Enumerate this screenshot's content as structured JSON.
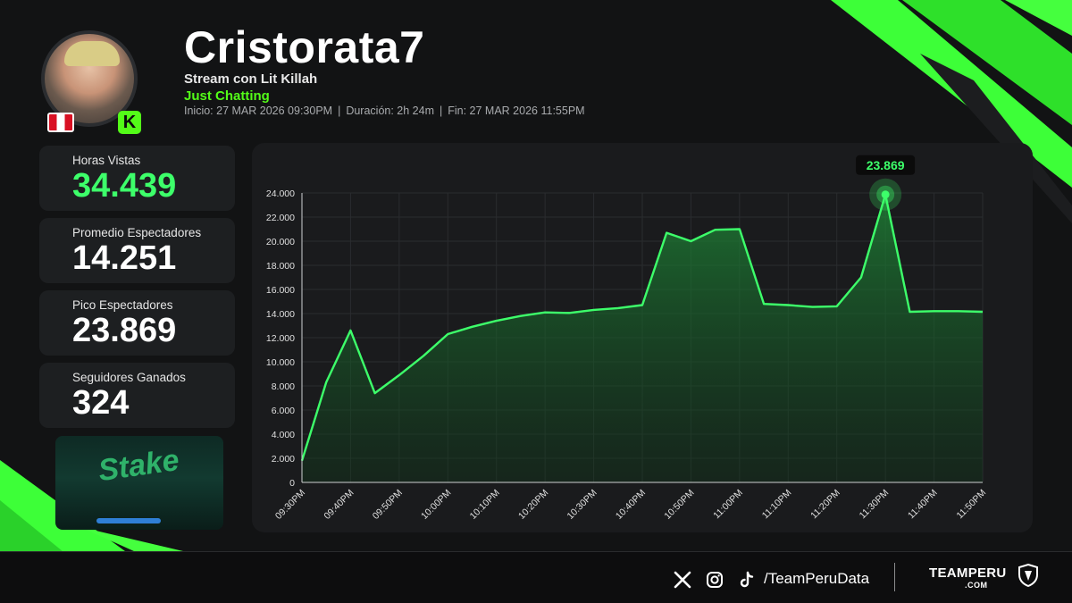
{
  "header": {
    "channel_name": "Cristorata7",
    "stream_title": "Stream con Lit Killah",
    "category": "Just Chatting",
    "start": "Inicio: 27 MAR 2026 09:30PM",
    "duration": "Duración: 2h 24m",
    "end": "Fin: 27 MAR 2026 11:55PM",
    "separator": "|",
    "platform_badge": "K",
    "flag": "peru-flag-icon"
  },
  "stats": [
    {
      "label": "Horas Vistas",
      "value": "34.439",
      "highlight": true
    },
    {
      "label": "Promedio Espectadores",
      "value": "14.251",
      "highlight": false
    },
    {
      "label": "Pico Espectadores",
      "value": "23.869",
      "highlight": false
    },
    {
      "label": "Seguidores Ganados",
      "value": "324",
      "highlight": false
    }
  ],
  "chart_data": {
    "type": "area",
    "title": "",
    "xlabel": "",
    "ylabel": "",
    "ylim": [
      0,
      24000
    ],
    "y_ticks": [
      "0",
      "2.000",
      "4.000",
      "6.000",
      "8.000",
      "10.000",
      "12.000",
      "14.000",
      "16.000",
      "18.000",
      "20.000",
      "22.000",
      "24.000"
    ],
    "x_ticks": [
      "09:30PM",
      "09:40PM",
      "09:50PM",
      "10:00PM",
      "10:10PM",
      "10:20PM",
      "10:30PM",
      "10:40PM",
      "10:50PM",
      "11:00PM",
      "11:10PM",
      "11:20PM",
      "11:30PM",
      "11:40PM",
      "11:50PM"
    ],
    "grid": true,
    "series": [
      {
        "x_minutes_after_0930": [
          0,
          5,
          10,
          15,
          20,
          25,
          30,
          35,
          40,
          45,
          50,
          55,
          60,
          65,
          70,
          75,
          80,
          85,
          90,
          95,
          100,
          105,
          110,
          115,
          120,
          125,
          130,
          135,
          140
        ],
        "values": [
          1800,
          8300,
          12600,
          7400,
          8900,
          10500,
          12300,
          12900,
          13400,
          13800,
          14100,
          14050,
          14300,
          14450,
          14700,
          20700,
          20000,
          20950,
          21000,
          14800,
          14700,
          14550,
          14600,
          17000,
          23869,
          14150,
          14200,
          14200,
          14150
        ]
      }
    ],
    "peak": {
      "x_minutes_after_0930": 120,
      "value": 23869,
      "label": "23.869"
    },
    "colors": {
      "line": "#3dff6a",
      "fill": "#1f7a32"
    }
  },
  "footer": {
    "handle": "/TeamPeruData",
    "brand": "TEAMPERU",
    "brand_sub": ".COM",
    "icons": [
      "x-icon",
      "instagram-icon",
      "tiktok-icon"
    ]
  }
}
